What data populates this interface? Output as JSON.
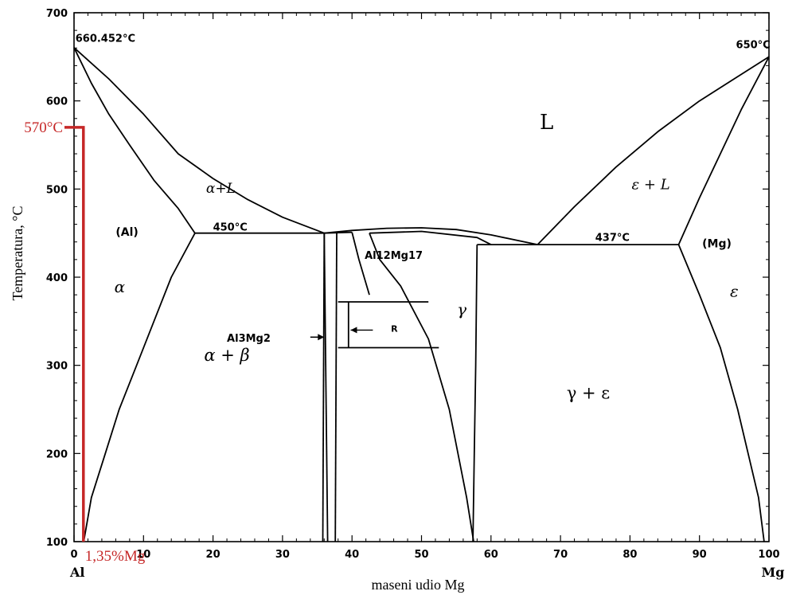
{
  "chart_data": {
    "type": "phase-diagram",
    "xlabel": "maseni udio Mg",
    "ylabel": "Temperatura, °C",
    "xlim": [
      0,
      100
    ],
    "ylim": [
      100,
      700
    ],
    "x_ticks": [
      0,
      10,
      20,
      30,
      40,
      50,
      60,
      70,
      80,
      90,
      100
    ],
    "y_ticks": [
      100,
      200,
      300,
      400,
      500,
      600,
      700
    ],
    "end_labels": {
      "left": "Al",
      "right": "Mg"
    },
    "point_labels": {
      "al_melt": "660.452°C",
      "mg_melt": "650°C",
      "eutectic_left": "450°C",
      "eutectic_right": "437°C"
    },
    "region_labels": {
      "liquid": "L",
      "alpha_liquid": "α+L",
      "eps_liquid": "ε + L",
      "al_phase": "(Al)",
      "mg_phase": "(Mg)",
      "alpha": "α",
      "eps": "ε",
      "alpha_beta": "α + β",
      "gamma": "γ",
      "gamma_eps": "γ + ε",
      "al3mg2": "Al3Mg2",
      "al12mg17": "Al12Mg17",
      "r": "R"
    },
    "highlight": {
      "temperature_label": "570°C",
      "composition_label": "1,35%Mg",
      "x": 1.35,
      "y": 570,
      "color": "#c62828"
    },
    "curves": [
      {
        "name": "liquidus_al",
        "points": [
          [
            0,
            660.45
          ],
          [
            5,
            625
          ],
          [
            10,
            585
          ],
          [
            15,
            540
          ],
          [
            20,
            512
          ],
          [
            25,
            488
          ],
          [
            30,
            468
          ],
          [
            36,
            450
          ]
        ]
      },
      {
        "name": "solidus_al",
        "points": [
          [
            0,
            660.45
          ],
          [
            2.5,
            620
          ],
          [
            5,
            585
          ],
          [
            8,
            550
          ],
          [
            11.5,
            510
          ],
          [
            15,
            478
          ],
          [
            17.4,
            450
          ]
        ]
      },
      {
        "name": "solvus_al",
        "points": [
          [
            1.4,
            100
          ],
          [
            2.5,
            150
          ],
          [
            4.5,
            200
          ],
          [
            6.5,
            250
          ],
          [
            9,
            300
          ],
          [
            11.5,
            350
          ],
          [
            14,
            400
          ],
          [
            17.4,
            450
          ]
        ]
      },
      {
        "name": "eutectic_450",
        "points": [
          [
            17.4,
            450
          ],
          [
            36,
            450
          ]
        ]
      },
      {
        "name": "al3mg2_left",
        "points": [
          [
            36,
            450
          ],
          [
            35.8,
            100
          ]
        ]
      },
      {
        "name": "al3mg2_right",
        "points": [
          [
            36,
            450
          ],
          [
            36.5,
            100
          ]
        ]
      },
      {
        "name": "beta_r_left",
        "points": [
          [
            37.8,
            450
          ],
          [
            37.6,
            100
          ]
        ]
      },
      {
        "name": "beta_liquidus_dome",
        "points": [
          [
            36,
            450
          ],
          [
            40,
            453
          ],
          [
            45,
            455.5
          ],
          [
            50,
            456
          ],
          [
            55,
            454
          ],
          [
            60,
            448
          ],
          [
            66.7,
            437
          ]
        ]
      },
      {
        "name": "peritectic_small",
        "points": [
          [
            36,
            450
          ],
          [
            40,
            451
          ]
        ]
      },
      {
        "name": "gamma_solidus_left",
        "points": [
          [
            40,
            451
          ],
          [
            41,
            420
          ],
          [
            42.5,
            380
          ]
        ]
      },
      {
        "name": "gamma_solvus_left",
        "points": [
          [
            42.5,
            450
          ],
          [
            44,
            420
          ],
          [
            47,
            390
          ],
          [
            51,
            330
          ],
          [
            54,
            250
          ],
          [
            56.5,
            150
          ],
          [
            57.5,
            100
          ]
        ]
      },
      {
        "name": "gamma_solidus_right",
        "points": [
          [
            58,
            437
          ],
          [
            57.8,
            300
          ],
          [
            57.6,
            200
          ],
          [
            57.4,
            100
          ]
        ]
      },
      {
        "name": "gamma_top",
        "points": [
          [
            42.5,
            450
          ],
          [
            50,
            452
          ],
          [
            58,
            445
          ],
          [
            60,
            437
          ]
        ]
      },
      {
        "name": "r_box_top",
        "points": [
          [
            38,
            372
          ],
          [
            51,
            372
          ]
        ]
      },
      {
        "name": "r_box_bottom",
        "points": [
          [
            38,
            320
          ],
          [
            52.5,
            320
          ]
        ]
      },
      {
        "name": "r_box_left",
        "points": [
          [
            39.5,
            372
          ],
          [
            39.5,
            320
          ]
        ]
      },
      {
        "name": "eutectic_437",
        "points": [
          [
            58,
            437
          ],
          [
            87,
            437
          ]
        ]
      },
      {
        "name": "liquidus_mg",
        "points": [
          [
            66.7,
            437
          ],
          [
            72,
            480
          ],
          [
            78,
            525
          ],
          [
            84,
            565
          ],
          [
            90,
            600
          ],
          [
            95,
            625
          ],
          [
            100,
            650
          ]
        ]
      },
      {
        "name": "solidus_mg",
        "points": [
          [
            87,
            437
          ],
          [
            90,
            490
          ],
          [
            93,
            540
          ],
          [
            96,
            590
          ],
          [
            100,
            650
          ]
        ]
      },
      {
        "name": "solvus_mg",
        "points": [
          [
            87,
            437
          ],
          [
            90,
            380
          ],
          [
            93,
            320
          ],
          [
            95.5,
            250
          ],
          [
            97,
            200
          ],
          [
            98.5,
            150
          ],
          [
            99.3,
            100
          ]
        ]
      }
    ],
    "arrows": [
      {
        "label": "al3mg2",
        "from": [
          34,
          332
        ],
        "to": [
          36,
          332
        ]
      },
      {
        "label": "r",
        "from": [
          43,
          340
        ],
        "to": [
          39.8,
          340
        ]
      }
    ]
  }
}
